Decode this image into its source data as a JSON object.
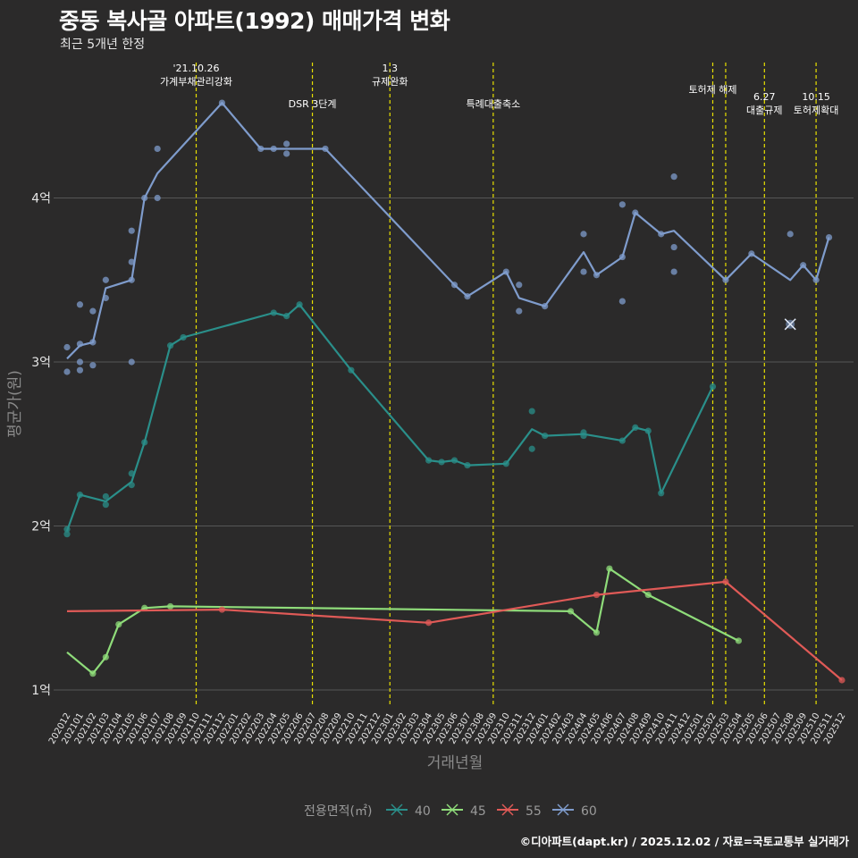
{
  "title": "중동 복사골 아파트(1992) 매매가격 변화",
  "subtitle": "최근 5개년 한정",
  "credit": "©디아파트(dapt.kr) / 2025.12.02 / 자료=국토교통부 실거래가",
  "chart_data": {
    "type": "line",
    "xlabel": "거래년월",
    "ylabel": "평균가(원)",
    "ylim": [
      0.9,
      4.9
    ],
    "y_ticks": [
      {
        "v": 1,
        "label": "1억"
      },
      {
        "v": 2,
        "label": "2억"
      },
      {
        "v": 3,
        "label": "3억"
      },
      {
        "v": 4,
        "label": "4억"
      }
    ],
    "months": [
      "202012",
      "202101",
      "202102",
      "202103",
      "202104",
      "202105",
      "202106",
      "202107",
      "202108",
      "202109",
      "202110",
      "202111",
      "202112",
      "202201",
      "202202",
      "202203",
      "202204",
      "202205",
      "202206",
      "202207",
      "202208",
      "202209",
      "202210",
      "202211",
      "202212",
      "202301",
      "202302",
      "202303",
      "202304",
      "202305",
      "202306",
      "202307",
      "202308",
      "202309",
      "202310",
      "202311",
      "202312",
      "202401",
      "202402",
      "202403",
      "202404",
      "202405",
      "202406",
      "202407",
      "202408",
      "202409",
      "202410",
      "202411",
      "202412",
      "202501",
      "202502",
      "202503",
      "202504",
      "202505",
      "202506",
      "202507",
      "202508",
      "202509",
      "202510",
      "202511",
      "202512"
    ],
    "legend_title": "전용면적(㎡)",
    "events": [
      {
        "month": "202110",
        "label": "'21.10.26\n가계부채관리강화",
        "row": 0
      },
      {
        "month": "202207",
        "label": "DSR 3단계",
        "row": 1
      },
      {
        "month": "202301",
        "label": "1.3\n규제완화",
        "row": 0
      },
      {
        "month": "202309",
        "label": "특례대출축소",
        "row": 1
      },
      {
        "month": "202502",
        "label": "토허제 해제",
        "row": 2
      },
      {
        "month": "202503",
        "label": "",
        "row": 2
      },
      {
        "month": "202506",
        "label": "6.27\n대출규제",
        "row": 3
      },
      {
        "month": "202510",
        "label": "10.15\n토허제확대",
        "row": 3
      }
    ],
    "series": [
      {
        "name": "40",
        "color": "#2a8f8a",
        "line": [
          [
            "202012",
            1.97
          ],
          [
            "202101",
            2.19
          ],
          [
            "202102",
            2.17
          ],
          [
            "202103",
            2.15
          ],
          [
            "202105",
            2.27
          ],
          [
            "202106",
            2.51
          ],
          [
            "202108",
            3.1
          ],
          [
            "202109",
            3.15
          ],
          [
            "202204",
            3.3
          ],
          [
            "202205",
            3.28
          ],
          [
            "202206",
            3.35
          ],
          [
            "202210",
            2.95
          ],
          [
            "202304",
            2.4
          ],
          [
            "202305",
            2.39
          ],
          [
            "202306",
            2.4
          ],
          [
            "202307",
            2.37
          ],
          [
            "202310",
            2.38
          ],
          [
            "202312",
            2.59
          ],
          [
            "202401",
            2.55
          ],
          [
            "202404",
            2.56
          ],
          [
            "202407",
            2.52
          ],
          [
            "202408",
            2.6
          ],
          [
            "202409",
            2.58
          ],
          [
            "202410",
            2.2
          ],
          [
            "202502",
            2.85
          ]
        ],
        "points": [
          [
            "202012",
            1.95
          ],
          [
            "202012",
            1.98
          ],
          [
            "202101",
            2.19
          ],
          [
            "202103",
            2.13
          ],
          [
            "202103",
            2.18
          ],
          [
            "202105",
            2.25
          ],
          [
            "202105",
            2.32
          ],
          [
            "202106",
            2.51
          ],
          [
            "202108",
            3.1
          ],
          [
            "202109",
            3.15
          ],
          [
            "202204",
            3.3
          ],
          [
            "202205",
            3.28
          ],
          [
            "202206",
            3.35
          ],
          [
            "202210",
            2.95
          ],
          [
            "202304",
            2.4
          ],
          [
            "202305",
            2.39
          ],
          [
            "202306",
            2.4
          ],
          [
            "202307",
            2.37
          ],
          [
            "202310",
            2.38
          ],
          [
            "202312",
            2.7
          ],
          [
            "202312",
            2.47
          ],
          [
            "202401",
            2.55
          ],
          [
            "202404",
            2.55
          ],
          [
            "202404",
            2.57
          ],
          [
            "202407",
            2.52
          ],
          [
            "202408",
            2.6
          ],
          [
            "202409",
            2.58
          ],
          [
            "202410",
            2.2
          ],
          [
            "202502",
            2.85
          ]
        ]
      },
      {
        "name": "45",
        "color": "#8fdc7a",
        "line": [
          [
            "202012",
            1.23
          ],
          [
            "202102",
            1.1
          ],
          [
            "202103",
            1.2
          ],
          [
            "202104",
            1.4
          ],
          [
            "202106",
            1.5
          ],
          [
            "202108",
            1.51
          ],
          [
            "202403",
            1.48
          ],
          [
            "202405",
            1.35
          ],
          [
            "202406",
            1.74
          ],
          [
            "202409",
            1.58
          ],
          [
            "202504",
            1.3
          ]
        ],
        "points": [
          [
            "202102",
            1.1
          ],
          [
            "202103",
            1.2
          ],
          [
            "202104",
            1.4
          ],
          [
            "202106",
            1.5
          ],
          [
            "202108",
            1.51
          ],
          [
            "202403",
            1.48
          ],
          [
            "202405",
            1.35
          ],
          [
            "202406",
            1.74
          ],
          [
            "202409",
            1.58
          ],
          [
            "202504",
            1.3
          ]
        ]
      },
      {
        "name": "55",
        "color": "#e05a57",
        "line": [
          [
            "202012",
            1.48
          ],
          [
            "202112",
            1.49
          ],
          [
            "202304",
            1.41
          ],
          [
            "202405",
            1.58
          ],
          [
            "202503",
            1.66
          ],
          [
            "202512",
            1.06
          ]
        ],
        "points": [
          [
            "202112",
            1.49
          ],
          [
            "202304",
            1.41
          ],
          [
            "202405",
            1.58
          ],
          [
            "202503",
            1.66
          ],
          [
            "202512",
            1.06
          ]
        ]
      },
      {
        "name": "60",
        "color": "#7f9ccc",
        "line": [
          [
            "202012",
            3.02
          ],
          [
            "202101",
            3.1
          ],
          [
            "202102",
            3.12
          ],
          [
            "202103",
            3.45
          ],
          [
            "202105",
            3.5
          ],
          [
            "202106",
            4.0
          ],
          [
            "202107",
            4.15
          ],
          [
            "202112",
            4.58
          ],
          [
            "202203",
            4.3
          ],
          [
            "202204",
            4.3
          ],
          [
            "202205",
            4.3
          ],
          [
            "202206",
            4.3
          ],
          [
            "202208",
            4.3
          ],
          [
            "202306",
            3.47
          ],
          [
            "202307",
            3.4
          ],
          [
            "202310",
            3.55
          ],
          [
            "202311",
            3.39
          ],
          [
            "202401",
            3.34
          ],
          [
            "202404",
            3.67
          ],
          [
            "202405",
            3.53
          ],
          [
            "202407",
            3.64
          ],
          [
            "202408",
            3.91
          ],
          [
            "202410",
            3.78
          ],
          [
            "202411",
            3.8
          ],
          [
            "202503",
            3.5
          ],
          [
            "202505",
            3.66
          ],
          [
            "202508",
            3.5
          ],
          [
            "202509",
            3.59
          ],
          [
            "202510",
            3.5
          ],
          [
            "202511",
            3.76
          ]
        ],
        "points": [
          [
            "202012",
            3.09
          ],
          [
            "202012",
            2.94
          ],
          [
            "202101",
            3.35
          ],
          [
            "202101",
            3.11
          ],
          [
            "202101",
            3.0
          ],
          [
            "202101",
            2.95
          ],
          [
            "202102",
            3.31
          ],
          [
            "202102",
            3.12
          ],
          [
            "202102",
            2.98
          ],
          [
            "202103",
            3.5
          ],
          [
            "202103",
            3.39
          ],
          [
            "202105",
            3.8
          ],
          [
            "202105",
            3.61
          ],
          [
            "202105",
            3.5
          ],
          [
            "202105",
            3.0
          ],
          [
            "202106",
            4.0
          ],
          [
            "202107",
            4.3
          ],
          [
            "202107",
            4.0
          ],
          [
            "202112",
            4.58
          ],
          [
            "202203",
            4.3
          ],
          [
            "202204",
            4.3
          ],
          [
            "202205",
            4.33
          ],
          [
            "202205",
            4.27
          ],
          [
            "202208",
            4.3
          ],
          [
            "202306",
            3.47
          ],
          [
            "202307",
            3.4
          ],
          [
            "202310",
            3.55
          ],
          [
            "202311",
            3.47
          ],
          [
            "202311",
            3.31
          ],
          [
            "202401",
            3.34
          ],
          [
            "202404",
            3.78
          ],
          [
            "202404",
            3.55
          ],
          [
            "202405",
            3.53
          ],
          [
            "202407",
            3.96
          ],
          [
            "202407",
            3.64
          ],
          [
            "202407",
            3.37
          ],
          [
            "202408",
            3.91
          ],
          [
            "202410",
            3.78
          ],
          [
            "202411",
            4.13
          ],
          [
            "202411",
            3.7
          ],
          [
            "202411",
            3.55
          ],
          [
            "202503",
            3.5
          ],
          [
            "202505",
            3.66
          ],
          [
            "202508",
            3.78
          ],
          [
            "202509",
            3.59
          ],
          [
            "202510",
            3.5
          ],
          [
            "202511",
            3.76
          ]
        ],
        "cross": [
          [
            "202508",
            3.23
          ]
        ]
      }
    ]
  }
}
